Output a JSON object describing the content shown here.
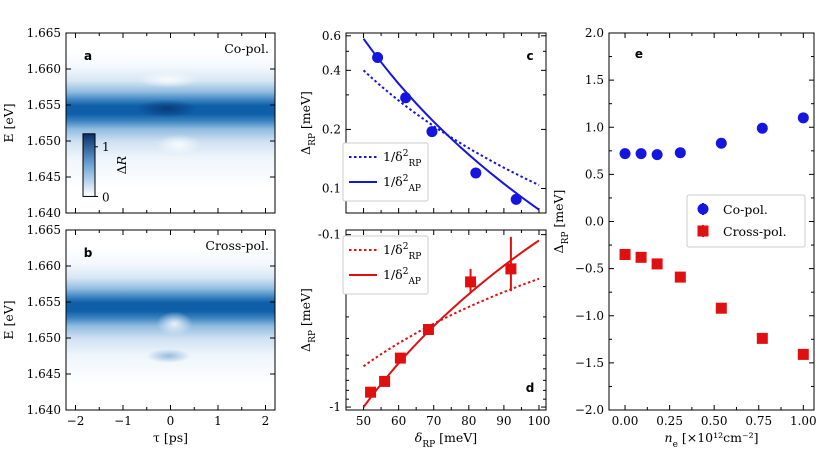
{
  "chart_data": [
    {
      "id": "a",
      "type": "heatmap",
      "panel_label": "a",
      "annotation": "Co-pol.",
      "annotation_color": "#1515e0",
      "xlabel": "",
      "ylabel": "E [eV]",
      "xlim": [
        -2.2,
        2.2
      ],
      "ylim": [
        1.64,
        1.665
      ],
      "xticks": [
        "-2",
        "-1",
        "0",
        "1",
        "2"
      ],
      "xtick_values": [
        -2,
        -1,
        0,
        1,
        2
      ],
      "show_xtick_labels": false,
      "yticks": [
        "1.640",
        "1.645",
        "1.650",
        "1.655",
        "1.660",
        "1.665"
      ],
      "ytick_values": [
        1.64,
        1.645,
        1.65,
        1.655,
        1.66,
        1.665
      ],
      "band_center_eV": 1.6535,
      "band_width_eV": 0.0022,
      "dip_tau_ps": 0.0,
      "colorbar": {
        "label": "ΔR",
        "ticks": [
          "0",
          "1"
        ]
      }
    },
    {
      "id": "b",
      "type": "heatmap",
      "panel_label": "b",
      "annotation": "Cross-pol.",
      "annotation_color": "#e01010",
      "xlabel": "τ [ps]",
      "ylabel": "E [eV]",
      "xlim": [
        -2.2,
        2.2
      ],
      "ylim": [
        1.64,
        1.665
      ],
      "xticks": [
        "−2",
        "−1",
        "0",
        "1",
        "2"
      ],
      "xtick_values": [
        -2,
        -1,
        0,
        1,
        2
      ],
      "show_xtick_labels": true,
      "yticks": [
        "1.640",
        "1.645",
        "1.650",
        "1.655",
        "1.660",
        "1.665"
      ],
      "ytick_values": [
        1.64,
        1.645,
        1.65,
        1.655,
        1.66,
        1.665
      ],
      "band_center_eV": 1.6535,
      "band_width_eV": 0.0022,
      "dip_tau_ps": 0.0
    },
    {
      "id": "c",
      "type": "scatter",
      "panel_label": "c",
      "scale": "log",
      "xlabel": "",
      "ylabel": "Δ_RP [meV]",
      "ylabel_main": "Δ",
      "ylabel_sub": "RP",
      "ylabel_unit": " [meV]",
      "xlim": [
        45,
        102
      ],
      "ylim": [
        0.075,
        0.62
      ],
      "xticks": [
        "50",
        "60",
        "70",
        "80",
        "90",
        "100"
      ],
      "xtick_values": [
        50,
        60,
        70,
        80,
        90,
        100
      ],
      "show_xtick_labels": false,
      "yticks": [
        "0.1",
        "0.2",
        "0.4",
        "0.6"
      ],
      "ytick_values": [
        0.1,
        0.2,
        0.4,
        0.6
      ],
      "color": "#1515e0",
      "series": [
        {
          "name": "data",
          "x": [
            54,
            62,
            69.5,
            82,
            93.5
          ],
          "y": [
            0.465,
            0.29,
            0.195,
            0.12,
            0.088
          ]
        }
      ],
      "fits": [
        {
          "name": "1/δ²_RP",
          "style": "dotted",
          "x": [
            50,
            100
          ],
          "y": [
            0.4,
            0.104
          ]
        },
        {
          "name": "1/δ²_AP",
          "style": "solid",
          "x": [
            50,
            100
          ],
          "y": [
            0.58,
            0.078
          ]
        }
      ],
      "legend": [
        {
          "label_main": "1/δ",
          "label_sup": "2",
          "label_sub": "RP",
          "style": "dotted"
        },
        {
          "label_main": "1/δ",
          "label_sup": "2",
          "label_sub": "AP",
          "style": "solid"
        }
      ]
    },
    {
      "id": "d",
      "type": "scatter",
      "panel_label": "d",
      "scale": "log-neg",
      "xlabel": "δ_RP [meV]",
      "xlabel_main": "δ",
      "xlabel_sub": "RP",
      "xlabel_unit": " [meV]",
      "ylabel": "Δ_RP [meV]",
      "ylabel_main": "Δ",
      "ylabel_sub": "RP",
      "ylabel_unit": " [meV]",
      "xlim": [
        45,
        102
      ],
      "ylim": [
        -1.04,
        -0.094
      ],
      "xticks": [
        "50",
        "60",
        "70",
        "80",
        "90",
        "100"
      ],
      "xtick_values": [
        50,
        60,
        70,
        80,
        90,
        100
      ],
      "show_xtick_labels": true,
      "yticks": [
        "-0.1",
        "-1"
      ],
      "ytick_values": [
        -0.1,
        -1
      ],
      "color": "#e01010",
      "series": [
        {
          "name": "data",
          "x": [
            52,
            56,
            60.5,
            68.5,
            80.5,
            92
          ],
          "y": [
            -0.82,
            -0.71,
            -0.52,
            -0.355,
            -0.188,
            -0.158
          ],
          "yerr": [
            0.04,
            0.035,
            0.03,
            0.015,
            0.03,
            0.055
          ]
        }
      ],
      "fits": [
        {
          "name": "1/δ²_RP",
          "style": "dotted",
          "x": [
            50,
            100
          ],
          "y": [
            -0.58,
            -0.18
          ]
        },
        {
          "name": "1/δ²_AP",
          "style": "solid",
          "x": [
            50,
            100
          ],
          "y": [
            -1.0,
            -0.108
          ]
        }
      ],
      "legend": [
        {
          "label_main": "1/δ",
          "label_sup": "2",
          "label_sub": "RP",
          "style": "dotted"
        },
        {
          "label_main": "1/δ",
          "label_sup": "2",
          "label_sub": "AP",
          "style": "solid"
        }
      ]
    },
    {
      "id": "e",
      "type": "scatter",
      "panel_label": "e",
      "xlabel": "n_e [×10¹²cm⁻²]",
      "xlabel_main": "n",
      "xlabel_sub": "e",
      "xlabel_unit": " [×10¹²cm⁻²]",
      "ylabel": "Δ_RP [meV]",
      "ylabel_main": "Δ",
      "ylabel_sub": "RP",
      "ylabel_unit": " [meV]",
      "xlim": [
        -0.09,
        1.06
      ],
      "ylim": [
        -2.0,
        2.0
      ],
      "xticks": [
        "0.00",
        "0.25",
        "0.50",
        "0.75",
        "1.00"
      ],
      "xtick_values": [
        0,
        0.25,
        0.5,
        0.75,
        1.0
      ],
      "yticks": [
        "−2.0",
        "−1.5",
        "−1.0",
        "−0.5",
        "0.0",
        "0.5",
        "1.0",
        "1.5",
        "2.0"
      ],
      "ytick_values": [
        -2.0,
        -1.5,
        -1.0,
        -0.5,
        0.0,
        0.5,
        1.0,
        1.5,
        2.0
      ],
      "series": [
        {
          "name": "Co-pol.",
          "marker": "circle",
          "color": "#1515e0",
          "x": [
            0.0,
            0.09,
            0.18,
            0.31,
            0.54,
            0.77,
            1.0
          ],
          "y": [
            0.72,
            0.72,
            0.71,
            0.73,
            0.83,
            0.99,
            1.1
          ]
        },
        {
          "name": "Cross-pol.",
          "marker": "square",
          "color": "#e01010",
          "x": [
            0.0,
            0.09,
            0.18,
            0.31,
            0.54,
            0.77,
            1.0
          ],
          "y": [
            -0.35,
            -0.38,
            -0.45,
            -0.59,
            -0.92,
            -1.24,
            -1.41
          ]
        }
      ]
    }
  ]
}
